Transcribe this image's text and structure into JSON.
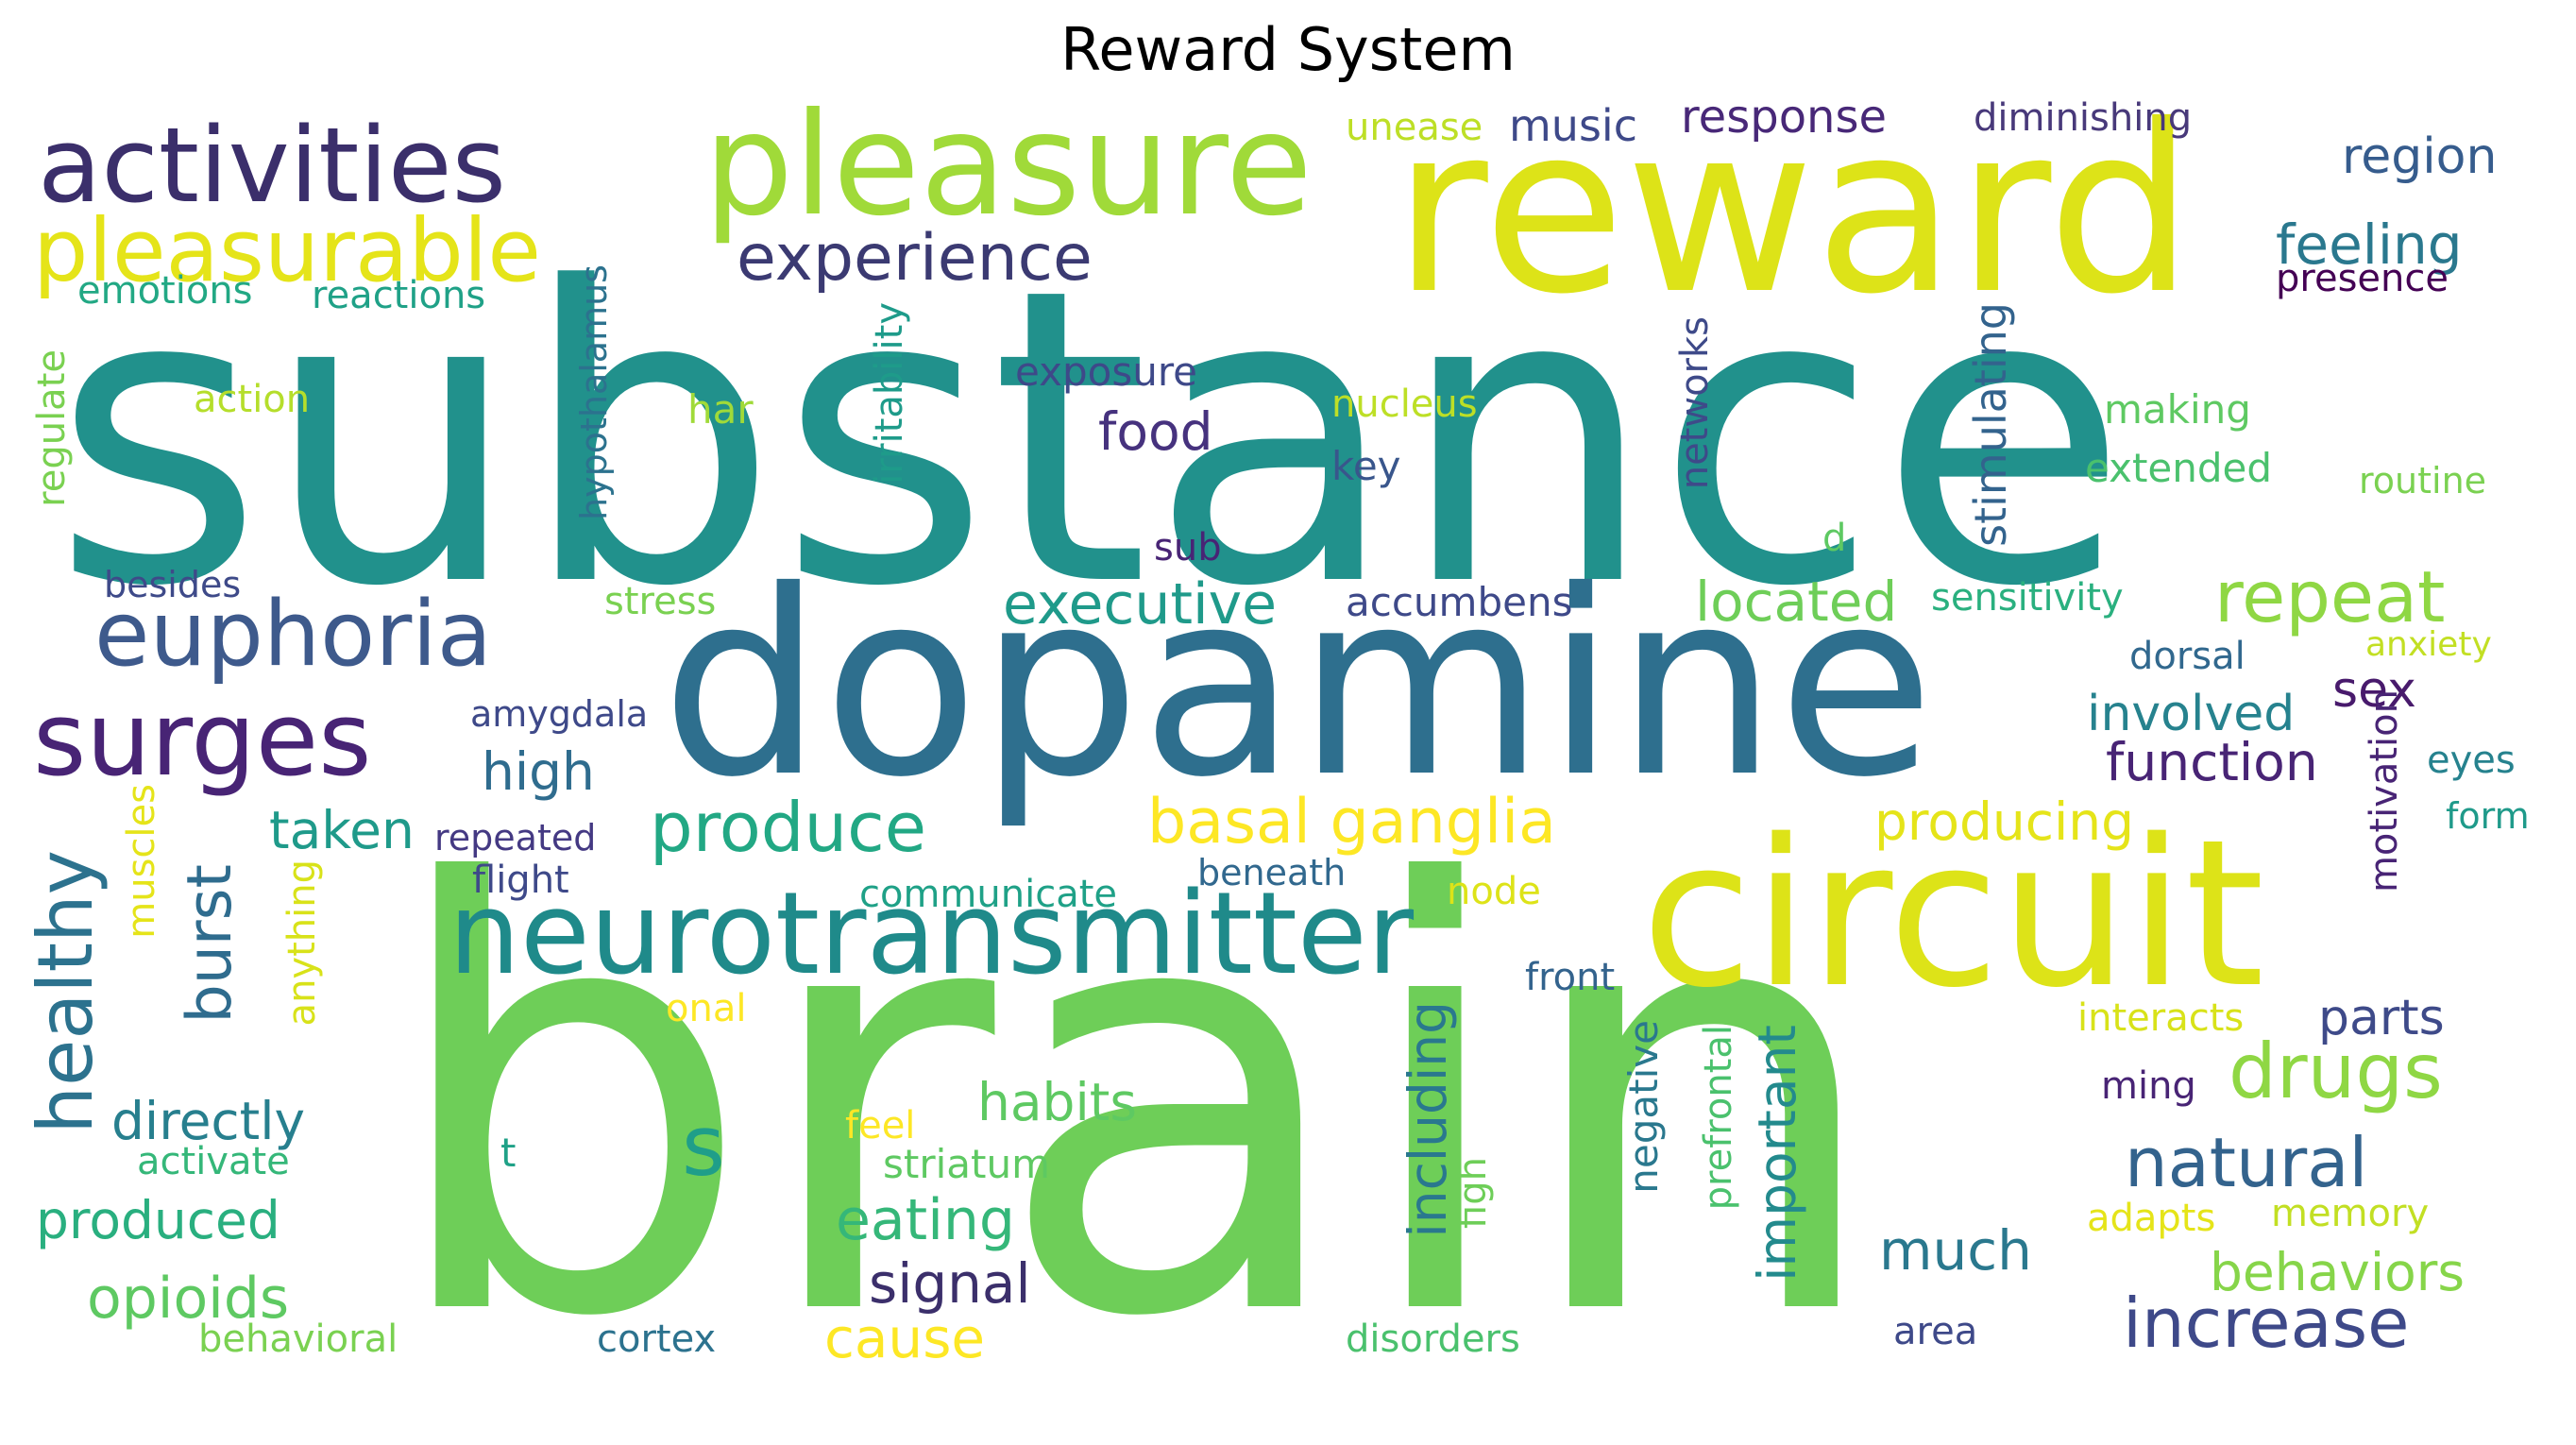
{
  "title": "Reward System",
  "palette": {
    "yellow": "#dde318",
    "yellow_light": "#fde725",
    "green_light": "#a0da39",
    "green": "#6ece58",
    "green_mid": "#4ac16d",
    "teal_green": "#1fa187",
    "teal": "#21918c",
    "teal_blue": "#277f8e",
    "blue": "#2e6f8e",
    "blue_dark": "#365c8d",
    "indigo": "#3e4989",
    "purple": "#482475",
    "purple_dark": "#440154"
  },
  "words": [
    {
      "text": "substance",
      "color": "#21918c"
    },
    {
      "text": "brain",
      "color": "#6ece58"
    },
    {
      "text": "reward",
      "color": "#dde318"
    },
    {
      "text": "dopamine",
      "color": "#2e6f8e"
    },
    {
      "text": "circuit",
      "color": "#dde318"
    },
    {
      "text": "pleasure",
      "color": "#a0da39"
    },
    {
      "text": "neurotransmitter",
      "color": "#1f8a8a"
    },
    {
      "text": "activities",
      "color": "#3b2f6b"
    },
    {
      "text": "pleasurable",
      "color": "#e5e419"
    },
    {
      "text": "euphoria",
      "color": "#3e5a8c"
    },
    {
      "text": "surges",
      "color": "#482475"
    },
    {
      "text": "experience",
      "color": "#3b3a72"
    },
    {
      "text": "music",
      "color": "#3e4989"
    },
    {
      "text": "response",
      "color": "#482878"
    },
    {
      "text": "unease",
      "color": "#bddf26"
    },
    {
      "text": "diminishing",
      "color": "#48397a"
    },
    {
      "text": "region",
      "color": "#365c8d"
    },
    {
      "text": "feeling",
      "color": "#2a788e"
    },
    {
      "text": "presence",
      "color": "#440154"
    },
    {
      "text": "emotions",
      "color": "#22a884"
    },
    {
      "text": "reactions",
      "color": "#1fa187"
    },
    {
      "text": "hypothalamus",
      "color": "#2c728e"
    },
    {
      "text": "irritability",
      "color": "#1e9b8a"
    },
    {
      "text": "stimulating",
      "color": "#33638d"
    },
    {
      "text": "networks",
      "color": "#3e4a89"
    },
    {
      "text": "regulate",
      "color": "#7ad151"
    },
    {
      "text": "action",
      "color": "#b5de2b"
    },
    {
      "text": "har",
      "color": "#a0da39"
    },
    {
      "text": "exposure",
      "color": "#3e4989"
    },
    {
      "text": "food",
      "color": "#46327e"
    },
    {
      "text": "nucleus",
      "color": "#bddf26"
    },
    {
      "text": "key",
      "color": "#39568c"
    },
    {
      "text": "making",
      "color": "#5ec962"
    },
    {
      "text": "extended",
      "color": "#4ac16d"
    },
    {
      "text": "routine",
      "color": "#7ad151"
    },
    {
      "text": "sub",
      "color": "#482475"
    },
    {
      "text": "d",
      "color": "#5ec962"
    },
    {
      "text": "besides",
      "color": "#3e4a89"
    },
    {
      "text": "stress",
      "color": "#7ad151"
    },
    {
      "text": "executive",
      "color": "#1f9a8a"
    },
    {
      "text": "accumbens",
      "color": "#3e4989"
    },
    {
      "text": "located",
      "color": "#6ece58"
    },
    {
      "text": "sensitivity",
      "color": "#2ab07f"
    },
    {
      "text": "repeat",
      "color": "#8fd744"
    },
    {
      "text": "dorsal",
      "color": "#31688e"
    },
    {
      "text": "anxiety",
      "color": "#c2df23"
    },
    {
      "text": "sex",
      "color": "#481a6c"
    },
    {
      "text": "amygdala",
      "color": "#3e4989"
    },
    {
      "text": "involved",
      "color": "#26828e"
    },
    {
      "text": "function",
      "color": "#482475"
    },
    {
      "text": "eyes",
      "color": "#26828e"
    },
    {
      "text": "high",
      "color": "#2f6c8e"
    },
    {
      "text": "motivation",
      "color": "#482475"
    },
    {
      "text": "form",
      "color": "#1f9a8a"
    },
    {
      "text": "taken",
      "color": "#1f9a8a"
    },
    {
      "text": "repeated",
      "color": "#443983"
    },
    {
      "text": "produce",
      "color": "#22a884"
    },
    {
      "text": "basal ganglia",
      "color": "#fde725"
    },
    {
      "text": "producing",
      "color": "#e5e419"
    },
    {
      "text": "healthy",
      "color": "#2c728e"
    },
    {
      "text": "burst",
      "color": "#2f6c8e"
    },
    {
      "text": "muscles",
      "color": "#e5e419"
    },
    {
      "text": "anything",
      "color": "#d8e219"
    },
    {
      "text": "flight",
      "color": "#3e4989"
    },
    {
      "text": "communicate",
      "color": "#1fa187"
    },
    {
      "text": "beneath",
      "color": "#31688e"
    },
    {
      "text": "node",
      "color": "#dde318"
    },
    {
      "text": "front",
      "color": "#33638d"
    },
    {
      "text": "drugs",
      "color": "#8fd744"
    },
    {
      "text": "parts",
      "color": "#3e4a89"
    },
    {
      "text": "interacts",
      "color": "#d8e219"
    },
    {
      "text": "onal",
      "color": "#fde725"
    },
    {
      "text": "habits",
      "color": "#5ec962"
    },
    {
      "text": "directly",
      "color": "#277f8e"
    },
    {
      "text": "including",
      "color": "#2a788e"
    },
    {
      "text": "important",
      "color": "#238a8d"
    },
    {
      "text": "s",
      "color": "#1f9e89"
    },
    {
      "text": "negative",
      "color": "#2a788e"
    },
    {
      "text": "prefrontal",
      "color": "#4ac16d"
    },
    {
      "text": "figh",
      "color": "#6ece58"
    },
    {
      "text": "natural",
      "color": "#33638d"
    },
    {
      "text": "ming",
      "color": "#482475"
    },
    {
      "text": "activate",
      "color": "#35b779"
    },
    {
      "text": "feel",
      "color": "#fde725"
    },
    {
      "text": "t",
      "color": "#1fa187"
    },
    {
      "text": "striatum",
      "color": "#5ec962"
    },
    {
      "text": "produced",
      "color": "#29af7f"
    },
    {
      "text": "eating",
      "color": "#35b779"
    },
    {
      "text": "adapts",
      "color": "#e5e419"
    },
    {
      "text": "memory",
      "color": "#c2df23"
    },
    {
      "text": "much",
      "color": "#2a788e"
    },
    {
      "text": "behaviors",
      "color": "#86d549"
    },
    {
      "text": "signal",
      "color": "#3b2f6b"
    },
    {
      "text": "opioids",
      "color": "#5ec962"
    },
    {
      "text": "increase",
      "color": "#3e4989"
    },
    {
      "text": "cause",
      "color": "#fde725"
    },
    {
      "text": "behavioral",
      "color": "#7ad151"
    },
    {
      "text": "cortex",
      "color": "#2c728e"
    },
    {
      "text": "disorders",
      "color": "#4ac16d"
    },
    {
      "text": "area",
      "color": "#3e4989"
    }
  ]
}
